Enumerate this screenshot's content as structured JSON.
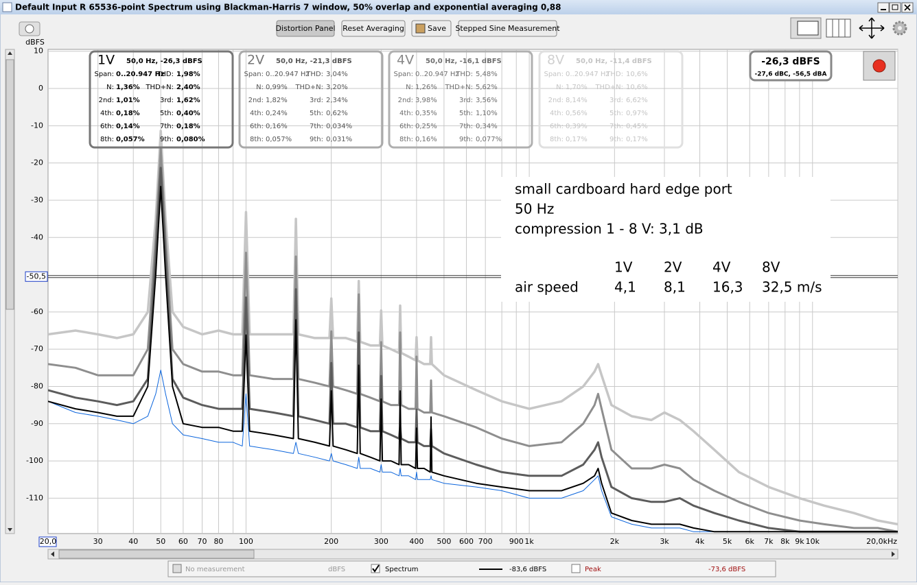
{
  "window": {
    "title": "Default Input R 65536-point Spectrum using Blackman-Harris 7 window, 50% overlap and exponential averaging 0,88"
  },
  "toolbar": {
    "buttons": [
      "Distortion Panel",
      "Reset Averaging",
      "Save",
      "Stepped Sine Measurement"
    ]
  },
  "chart_data": {
    "type": "line",
    "y_label": "dBFS",
    "log_x": true,
    "grid": true,
    "xlim": [
      20,
      20000
    ],
    "ylim": [
      -119.5,
      10.5
    ],
    "xticks": [
      30,
      40,
      50,
      60,
      70,
      80,
      100,
      200,
      300,
      400,
      500,
      600,
      700,
      900,
      {
        "value": 1000,
        "label": "1k"
      },
      {
        "value": 2000,
        "label": "2k"
      },
      {
        "value": 3000,
        "label": "3k"
      },
      {
        "value": 4000,
        "label": "4k"
      },
      {
        "value": 5000,
        "label": "5k"
      },
      {
        "value": 6000,
        "label": "6k"
      },
      {
        "value": 7000,
        "label": "7k"
      },
      {
        "value": 8000,
        "label": "8k"
      },
      {
        "value": 9000,
        "label": "9k"
      },
      {
        "value": 10000,
        "label": "10k"
      },
      {
        "value": 20000,
        "label": "20,0kHz"
      }
    ],
    "x_minor_grid": [
      90,
      800
    ],
    "yticks": [
      10,
      0,
      -10,
      -20,
      -30,
      -40,
      -60,
      -70,
      -80,
      -90,
      -100,
      -110
    ],
    "y_cursor": {
      "value": -50.5,
      "label": "-50,5"
    },
    "x_cursor": {
      "value": 20,
      "label": "20,0"
    },
    "x": [
      20,
      25,
      30,
      35,
      40,
      45,
      48,
      50,
      52,
      55,
      60,
      70,
      80,
      90,
      97,
      100,
      103,
      125,
      147,
      150,
      153,
      175,
      197,
      200,
      203,
      225,
      247,
      250,
      253,
      275,
      297,
      300,
      303,
      325,
      347,
      350,
      353,
      375,
      397,
      400,
      403,
      425,
      447,
      450,
      453,
      500,
      650,
      800,
      1000,
      1300,
      1550,
      1700,
      1750,
      1800,
      1950,
      2300,
      2700,
      3000,
      3400,
      3800,
      4500,
      5500,
      7000,
      9000,
      11000,
      14000,
      17000,
      20000
    ],
    "series": [
      {
        "color": "#c6c6c6",
        "values": [
          -66,
          -65,
          -66,
          -67,
          -66,
          -60,
          -35,
          -11.4,
          -35,
          -60,
          -64,
          -66,
          -65,
          -66,
          -66,
          -33.2,
          -66,
          -66,
          -66,
          -35,
          -66,
          -67,
          -67,
          -56.4,
          -67,
          -67,
          -68,
          -51.7,
          -68,
          -69,
          -69,
          -59.6,
          -69,
          -70,
          -71,
          -58.3,
          -71,
          -72,
          -73,
          -66.8,
          -73,
          -74,
          -74,
          -66.8,
          -74,
          -77,
          -81,
          -84,
          -86,
          -84,
          -80,
          -76,
          -74,
          -77,
          -85,
          -88,
          -89,
          -87,
          -89,
          -92,
          -97,
          -103,
          -107,
          -110,
          -112,
          -114,
          -116,
          -117
        ]
      },
      {
        "color": "#8e8e8e",
        "values": [
          -74,
          -75,
          -77,
          -77,
          -77,
          -70,
          -40,
          -16.1,
          -40,
          -70,
          -74,
          -76,
          -76,
          -77,
          -77,
          -44.1,
          -77,
          -78,
          -78,
          -45.1,
          -78,
          -79,
          -80,
          -65.2,
          -80,
          -81,
          -82,
          -55.3,
          -82,
          -83,
          -84,
          -68.1,
          -84,
          -85,
          -85,
          -65.5,
          -85,
          -86,
          -86,
          -72,
          -86,
          -87,
          -87,
          -78.4,
          -87,
          -88,
          -91,
          -94,
          -96,
          -95,
          -90,
          -85,
          -82,
          -86,
          -97,
          -102,
          -102,
          -101,
          -102,
          -105,
          -108,
          -111,
          -114,
          -116,
          -117,
          -118,
          -118,
          -119
        ]
      },
      {
        "color": "#5c5c5c",
        "values": [
          -81,
          -83,
          -84,
          -85,
          -84,
          -78,
          -45,
          -21.3,
          -45,
          -78,
          -83,
          -85,
          -86,
          -86,
          -86,
          -56.1,
          -86,
          -87,
          -88,
          -53.9,
          -88,
          -89,
          -90,
          -73.7,
          -90,
          -90,
          -91,
          -65.5,
          -91,
          -92,
          -92,
          -77.2,
          -92,
          -93,
          -94,
          -90.7,
          -94,
          -95,
          -95,
          -86.2,
          -95,
          -96,
          -96,
          -91.5,
          -96,
          -98,
          -101,
          -103,
          -104,
          -104,
          -101,
          -97,
          -95,
          -99,
          -107,
          -110,
          -111,
          -111,
          -110,
          -112,
          -114,
          -116,
          -118,
          -119,
          -119,
          -119,
          -119,
          -119
        ]
      },
      {
        "color": "#0a64dc",
        "values": [
          -84,
          -87,
          -88,
          -89,
          -90,
          -88,
          -82,
          -75.6,
          -82,
          -90,
          -93,
          -94,
          -95,
          -95,
          -96,
          -82,
          -96,
          -97,
          -98,
          -95,
          -98,
          -99,
          -100,
          -98,
          -100,
          -101,
          -102,
          -99,
          -102,
          -102,
          -103,
          -101,
          -103,
          -103,
          -104,
          -102,
          -104,
          -104,
          -105,
          -103,
          -105,
          -105,
          -105,
          -104,
          -105,
          -106,
          -107,
          -108,
          -110,
          -110,
          -108,
          -105,
          -104,
          -108,
          -115,
          -117,
          -118,
          -118,
          -118,
          -119,
          -119,
          -119,
          -119,
          -119,
          -119,
          -119,
          -119,
          -119
        ]
      },
      {
        "color": "#000000",
        "values": [
          -84,
          -86,
          -87,
          -88,
          -88,
          -80,
          -50,
          -26.3,
          -50,
          -80,
          -90,
          -91,
          -91,
          -92,
          -92,
          -66.2,
          -92,
          -93,
          -94,
          -62.1,
          -94,
          -95,
          -96,
          -81.2,
          -96,
          -97,
          -98,
          -74.3,
          -98,
          -99,
          -100,
          -83.4,
          -100,
          -100,
          -101,
          -81.2,
          -101,
          -101,
          -102,
          -91.2,
          -102,
          -102,
          -103,
          -88.2,
          -103,
          -104,
          -106,
          -107,
          -108,
          -108,
          -106,
          -104,
          -102,
          -106,
          -114,
          -116,
          -117,
          -117,
          -117,
          -118,
          -119,
          -119,
          -119,
          -119,
          -119,
          -119,
          -119,
          -119
        ]
      }
    ]
  },
  "panels": [
    {
      "title": "1V",
      "summary": "50,0 Hz, -26,3 dBFS",
      "rows": [
        [
          "Span:",
          "0..20.947 Hz",
          "THD:",
          "1,98%"
        ],
        [
          "N:",
          "1,36%",
          "THD+N:",
          "2,40%"
        ],
        [
          "2nd:",
          "1,01%",
          "3rd:",
          "1,62%"
        ],
        [
          "4th:",
          "0,18%",
          "5th:",
          "0,40%"
        ],
        [
          "6th:",
          "0,14%",
          "7th:",
          "0,18%"
        ],
        [
          "8th:",
          "0,057%",
          "9th:",
          "0,080%"
        ]
      ]
    },
    {
      "title": "2V",
      "summary": "50,0 Hz, -21,3 dBFS",
      "rows": [
        [
          "Span:",
          "0..20.947 Hz",
          "THD:",
          "3,04%"
        ],
        [
          "N:",
          "0,99%",
          "THD+N:",
          "3,20%"
        ],
        [
          "2nd:",
          "1,82%",
          "3rd:",
          "2,34%"
        ],
        [
          "4th:",
          "0,24%",
          "5th:",
          "0,62%"
        ],
        [
          "6th:",
          "0,16%",
          "7th:",
          "0,034%"
        ],
        [
          "8th:",
          "0,057%",
          "9th:",
          "0,031%"
        ]
      ]
    },
    {
      "title": "4V",
      "summary": "50,0 Hz, -16,1 dBFS",
      "rows": [
        [
          "Span:",
          "0..20.947 Hz",
          "THD:",
          "5,48%"
        ],
        [
          "N:",
          "1,26%",
          "THD+N:",
          "5,62%"
        ],
        [
          "2nd:",
          "3,98%",
          "3rd:",
          "3,56%"
        ],
        [
          "4th:",
          "0,35%",
          "5th:",
          "1,10%"
        ],
        [
          "6th:",
          "0,25%",
          "7th:",
          "0,34%"
        ],
        [
          "8th:",
          "0,16%",
          "9th:",
          "0,077%"
        ]
      ]
    },
    {
      "title": "8V",
      "summary": "50,0 Hz, -11,4 dBFS",
      "rows": [
        [
          "Span:",
          "0..20.947 Hz",
          "THD:",
          "10,6%"
        ],
        [
          "N:",
          "1,70%",
          "THD+N:",
          "10,6%"
        ],
        [
          "2nd:",
          "8,14%",
          "3rd:",
          "6,62%"
        ],
        [
          "4th:",
          "0,56%",
          "5th:",
          "0,97%"
        ],
        [
          "6th:",
          "0,39%",
          "7th:",
          "0,45%"
        ],
        [
          "8th:",
          "0,17%",
          "9th:",
          "0,17%"
        ]
      ]
    }
  ],
  "level": {
    "main": "-26,3 dBFS",
    "sub": "-27,6 dBC, -56,5 dBA"
  },
  "annotation": {
    "lines": [
      "small cardboard hard edge port",
      "50 Hz",
      "compression 1 - 8 V: 3,1 dB"
    ],
    "header": [
      "1V",
      "2V",
      "4V",
      "8V"
    ],
    "row": [
      "air speed",
      "4,1",
      "8,1",
      "16,3",
      "32,5 m/s"
    ]
  },
  "legend_bar": {
    "items": [
      {
        "label": "No measurement",
        "value": "dBFS",
        "checked": false
      },
      {
        "label": "Spectrum",
        "value": "-83,6 dBFS",
        "checked": true
      },
      {
        "label": "Peak",
        "value": "-73,6 dBFS",
        "checked": false
      }
    ]
  }
}
